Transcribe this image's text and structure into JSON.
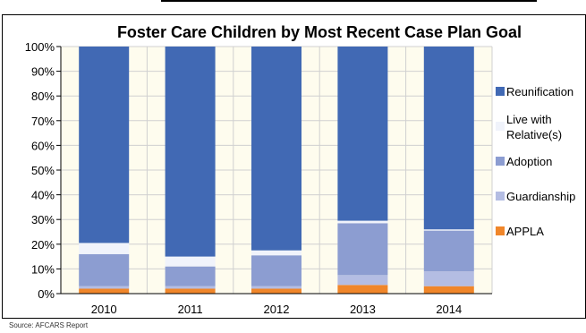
{
  "chart_data": {
    "type": "bar",
    "stacked": true,
    "normalized_percent": true,
    "title": "Foster Care Children by Most Recent Case Plan Goal",
    "xlabel": "",
    "ylabel": "",
    "categories": [
      "2010",
      "2011",
      "2012",
      "2013",
      "2014"
    ],
    "ylim": [
      0,
      100
    ],
    "yticks": [
      "0%",
      "10%",
      "20%",
      "30%",
      "40%",
      "50%",
      "60%",
      "70%",
      "80%",
      "90%",
      "100%"
    ],
    "grid": true,
    "legend_position": "right",
    "series": [
      {
        "name": "APPLA",
        "values": [
          2,
          2,
          2,
          3.5,
          3
        ],
        "color": "#f0862a"
      },
      {
        "name": "Guardianship",
        "values": [
          1,
          1,
          1,
          4,
          6
        ],
        "color": "#b4bde3"
      },
      {
        "name": "Adoption",
        "values": [
          13,
          8,
          12.5,
          21,
          16.5
        ],
        "color": "#8c9dd1"
      },
      {
        "name": "Live with Relative(s)",
        "values": [
          4.5,
          4,
          2,
          1,
          0.5
        ],
        "color": "#f0f3fb"
      },
      {
        "name": "Reunification",
        "values": [
          79.5,
          85,
          82.5,
          70.5,
          74
        ],
        "color": "#4169b4"
      }
    ],
    "legend_order": [
      "Reunification",
      "Live with Relative(s)",
      "Adoption",
      "Guardianship",
      "APPLA"
    ],
    "legend_lines": {
      "Reunification": [
        "Reunification"
      ],
      "Live with Relative(s)": [
        "Live with",
        "Relative(s)"
      ],
      "Adoption": [
        "Adoption"
      ],
      "Guardianship": [
        "Guardianship"
      ],
      "APPLA": [
        "APPLA"
      ]
    },
    "plot_background": "#fefcee",
    "grid_color": "#d0d0d0"
  },
  "source_note": "Source: AFCARS Report"
}
